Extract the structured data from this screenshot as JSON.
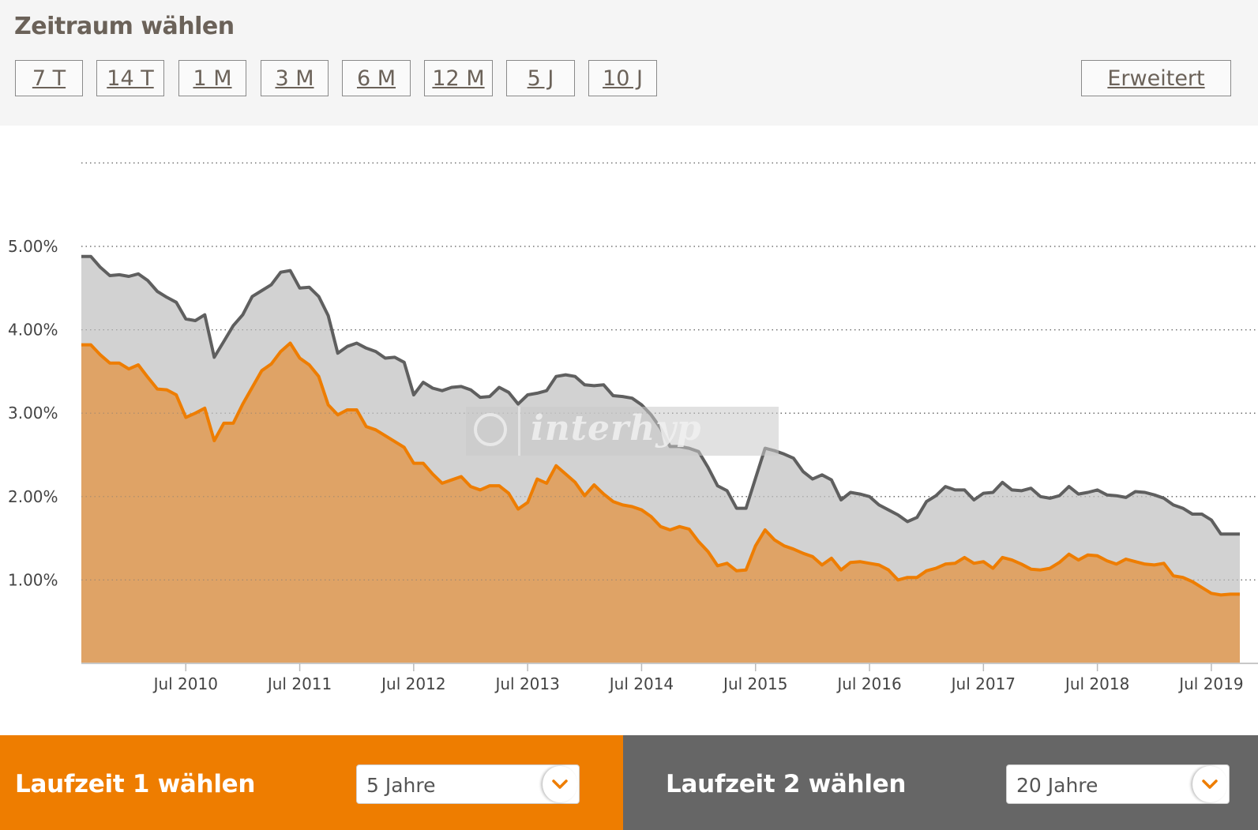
{
  "header": {
    "title": "Zeitraum wählen",
    "ranges": [
      "7 T",
      "14 T",
      "1 M",
      "3 M",
      "6 M",
      "12 M",
      "5 J",
      "10 J"
    ],
    "advanced_label": "Erweitert"
  },
  "watermark": "interhyp",
  "colors": {
    "series1_line": "#ee7d00",
    "series1_fill": "#dfa366",
    "series2_line": "#5f5f5f",
    "series2_fill": "#d2d2d2",
    "bottom_left_bg": "#ee7d00",
    "bottom_right_bg": "#666666"
  },
  "chart_data": {
    "type": "area",
    "x_start": "2009-08",
    "x_end": "2019-10",
    "ylim": [
      0,
      6
    ],
    "yticks": [
      "1.00%",
      "2.00%",
      "3.00%",
      "4.00%",
      "5.00%"
    ],
    "xticks": [
      "Jul 2010",
      "Jul 2011",
      "Jul 2012",
      "Jul 2013",
      "Jul 2014",
      "Jul 2015",
      "Jul 2016",
      "Jul 2017",
      "Jul 2018",
      "Jul 2019"
    ],
    "grid": "horizontal dotted",
    "series": [
      {
        "values": [
          4.88,
          4.88,
          4.75,
          4.65,
          4.66,
          4.64,
          4.67,
          4.59,
          4.46,
          4.39,
          4.33,
          4.13,
          4.11,
          4.18,
          3.67,
          3.86,
          4.05,
          4.18,
          4.4,
          4.47,
          4.54,
          4.69,
          4.71,
          4.5,
          4.51,
          4.4,
          4.17,
          3.72,
          3.8,
          3.84,
          3.78,
          3.74,
          3.66,
          3.67,
          3.61,
          3.22,
          3.37,
          3.3,
          3.27,
          3.31,
          3.32,
          3.28,
          3.19,
          3.2,
          3.31,
          3.25,
          3.11,
          3.22,
          3.24,
          3.27,
          3.44,
          3.46,
          3.44,
          3.34,
          3.33,
          3.34,
          3.21,
          3.2,
          3.18,
          3.1,
          2.98,
          2.82,
          2.6,
          2.6,
          2.58,
          2.54,
          2.35,
          2.13,
          2.07,
          1.86,
          1.86,
          2.22,
          2.58,
          2.55,
          2.51,
          2.46,
          2.3,
          2.21,
          2.26,
          2.2,
          1.96,
          2.05,
          2.03,
          2.0,
          1.9,
          1.84,
          1.78,
          1.7,
          1.75,
          1.94,
          2.01,
          2.12,
          2.08,
          2.08,
          1.96,
          2.04,
          2.05,
          2.17,
          2.08,
          2.07,
          2.1,
          2.0,
          1.98,
          2.01,
          2.12,
          2.03,
          2.05,
          2.08,
          2.02,
          2.01,
          1.99,
          2.06,
          2.05,
          2.02,
          1.98,
          1.9,
          1.86,
          1.79,
          1.79,
          1.72,
          1.55,
          1.55,
          1.55
        ]
      },
      {
        "values": [
          3.82,
          3.82,
          3.7,
          3.6,
          3.6,
          3.53,
          3.58,
          3.43,
          3.29,
          3.28,
          3.22,
          2.95,
          3.0,
          3.06,
          2.67,
          2.88,
          2.88,
          3.11,
          3.31,
          3.51,
          3.59,
          3.74,
          3.84,
          3.66,
          3.58,
          3.44,
          3.1,
          2.98,
          3.04,
          3.04,
          2.84,
          2.8,
          2.73,
          2.66,
          2.59,
          2.4,
          2.4,
          2.27,
          2.16,
          2.2,
          2.24,
          2.12,
          2.08,
          2.13,
          2.13,
          2.04,
          1.85,
          1.93,
          2.21,
          2.16,
          2.37,
          2.27,
          2.17,
          2.01,
          2.14,
          2.03,
          1.94,
          1.9,
          1.88,
          1.84,
          1.76,
          1.64,
          1.6,
          1.64,
          1.61,
          1.46,
          1.34,
          1.17,
          1.2,
          1.11,
          1.12,
          1.41,
          1.6,
          1.48,
          1.41,
          1.37,
          1.32,
          1.28,
          1.18,
          1.26,
          1.12,
          1.21,
          1.22,
          1.2,
          1.18,
          1.12,
          1.0,
          1.03,
          1.03,
          1.11,
          1.14,
          1.19,
          1.2,
          1.27,
          1.2,
          1.22,
          1.14,
          1.27,
          1.24,
          1.19,
          1.13,
          1.12,
          1.14,
          1.21,
          1.31,
          1.24,
          1.3,
          1.29,
          1.23,
          1.19,
          1.25,
          1.22,
          1.19,
          1.18,
          1.2,
          1.05,
          1.03,
          0.98,
          0.91,
          0.84,
          0.82,
          0.83,
          0.83
        ]
      }
    ]
  },
  "footer": {
    "left_label": "Laufzeit 1 wählen",
    "left_value": "5 Jahre",
    "right_label": "Laufzeit 2 wählen",
    "right_value": "20 Jahre"
  }
}
